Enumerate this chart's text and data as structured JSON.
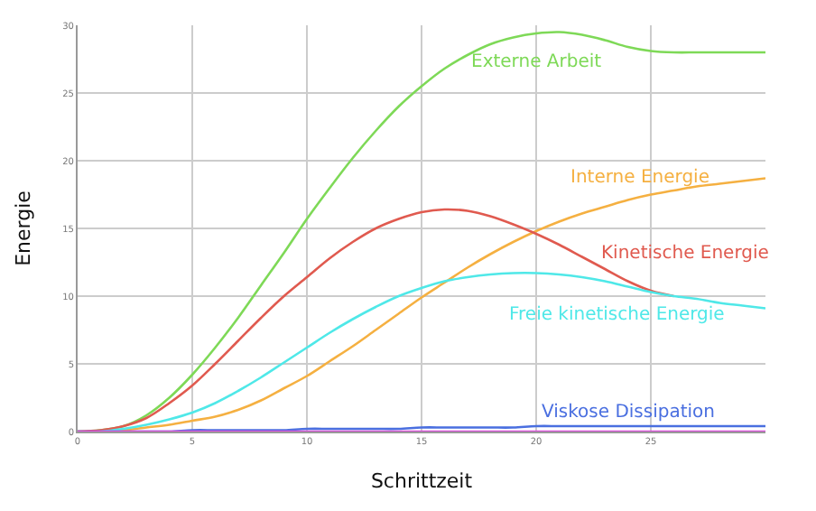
{
  "chart_data": {
    "type": "line",
    "xlabel": "Schrittzeit",
    "ylabel": "Energie",
    "xlim": [
      0,
      30
    ],
    "ylim": [
      0,
      30
    ],
    "xticks": [
      0,
      5,
      10,
      15,
      20,
      25
    ],
    "yticks": [
      0,
      5,
      10,
      15,
      20,
      25,
      30
    ],
    "grid": true,
    "legend": false,
    "marker": "none",
    "line_style": "solid",
    "x": [
      0,
      1,
      2,
      3,
      4,
      5,
      6,
      7,
      8,
      9,
      10,
      11,
      12,
      13,
      14,
      15,
      16,
      17,
      18,
      19,
      20,
      21,
      22,
      23,
      24,
      25,
      26,
      27,
      28,
      29,
      30
    ],
    "series": [
      {
        "name": "Externe Arbeit",
        "color": "#7ed957",
        "values": [
          0,
          0.1,
          0.4,
          1.2,
          2.5,
          4.2,
          6.2,
          8.4,
          10.8,
          13.2,
          15.7,
          18,
          20.2,
          22.2,
          24,
          25.5,
          26.8,
          27.8,
          28.6,
          29.1,
          29.4,
          29.5,
          29.3,
          28.9,
          28.4,
          28.1,
          28,
          28,
          28,
          28,
          28
        ]
      },
      {
        "name": "Interne Energie",
        "color": "#f5b041",
        "values": [
          0,
          0,
          0.1,
          0.3,
          0.5,
          0.8,
          1.1,
          1.6,
          2.3,
          3.2,
          4.1,
          5.2,
          6.3,
          7.5,
          8.7,
          9.9,
          11,
          12.1,
          13.1,
          14,
          14.8,
          15.5,
          16.1,
          16.6,
          17.1,
          17.5,
          17.8,
          18.1,
          18.3,
          18.5,
          18.7
        ]
      },
      {
        "name": "Kinetische Energie",
        "color": "#e05a4f",
        "values": [
          0,
          0.1,
          0.4,
          1,
          2.1,
          3.4,
          5,
          6.7,
          8.4,
          10,
          11.4,
          12.8,
          14,
          15,
          15.7,
          16.2,
          16.4,
          16.3,
          15.9,
          15.3,
          14.6,
          13.8,
          12.9,
          12,
          11.1,
          10.4,
          10,
          null,
          null,
          null,
          null
        ]
      },
      {
        "name": "Freie kinetische Energie",
        "color": "#4fe8e8",
        "values": [
          0,
          0,
          0.2,
          0.5,
          0.9,
          1.4,
          2.1,
          3,
          4,
          5.1,
          6.2,
          7.3,
          8.3,
          9.2,
          10,
          10.6,
          11.1,
          11.4,
          11.6,
          11.7,
          11.7,
          11.6,
          11.4,
          11.1,
          10.7,
          10.3,
          10,
          9.8,
          9.5,
          9.3,
          9.1
        ]
      },
      {
        "name": "Viskose Dissipation",
        "color": "#4a6fe0",
        "values": [
          0,
          0,
          0,
          0,
          0,
          0.1,
          0.1,
          0.1,
          0.1,
          0.1,
          0.2,
          0.2,
          0.2,
          0.2,
          0.2,
          0.3,
          0.3,
          0.3,
          0.3,
          0.3,
          0.4,
          0.4,
          0.4,
          0.4,
          0.4,
          0.4,
          0.4,
          0.4,
          0.4,
          0.4,
          0.4
        ]
      },
      {
        "color": "#d94fd9",
        "values": [
          0,
          0,
          0,
          0,
          0,
          0,
          0,
          0,
          0,
          0,
          0,
          0,
          0,
          0,
          0,
          0,
          0,
          0,
          0,
          0,
          0,
          0,
          0,
          0,
          0,
          0,
          0,
          0,
          0,
          0,
          0
        ]
      }
    ]
  }
}
